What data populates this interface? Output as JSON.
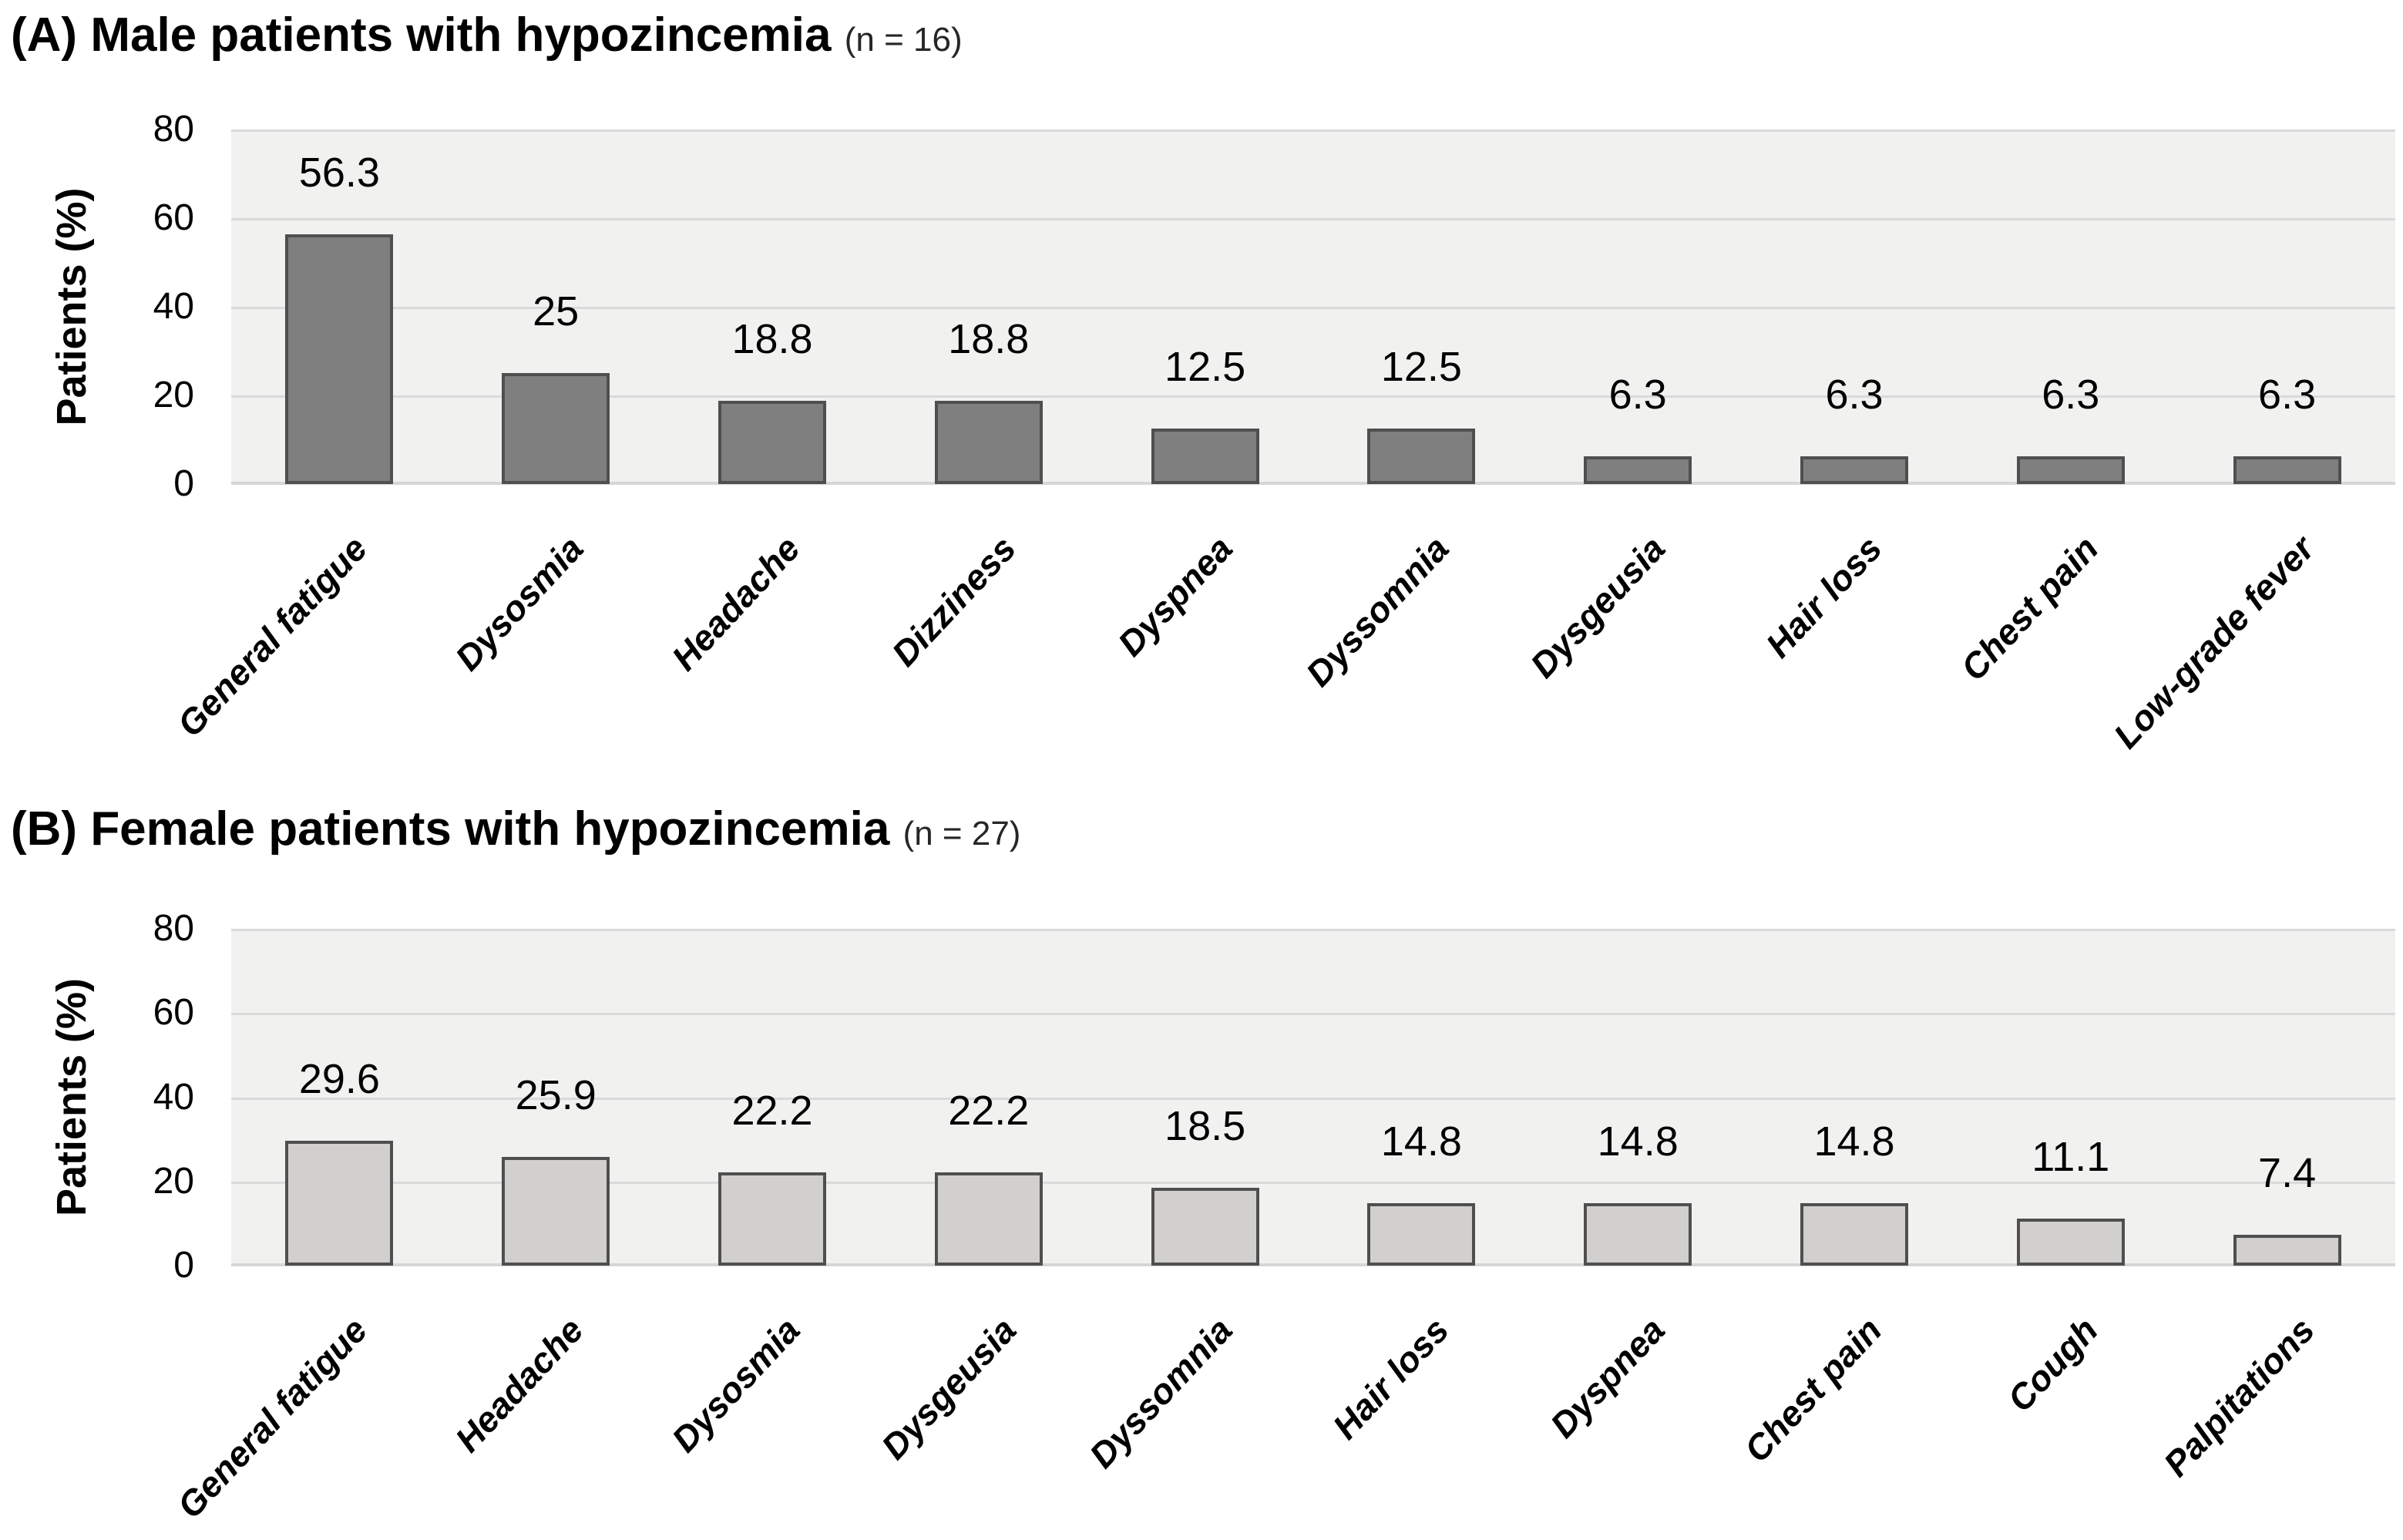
{
  "figure_background": "#ffffff",
  "chart_data": [
    {
      "type": "bar",
      "panel_letter": "(A)",
      "title": "Male patients with hypozincemia",
      "n_label": "(n = 16)",
      "ylabel": "Patients (%)",
      "ylim": [
        0,
        80
      ],
      "y_ticks": [
        80,
        60,
        40,
        20,
        0
      ],
      "grid": true,
      "legend": "none",
      "categories": [
        "General fatigue",
        "Dysosmia",
        "Headache",
        "Dizziness",
        "Dyspnea",
        "Dyssomnia",
        "Dysgeusia",
        "Hair loss",
        "Chest pain",
        "Low-grade fever"
      ],
      "values": [
        56.3,
        25,
        18.8,
        18.8,
        12.5,
        12.5,
        6.3,
        6.3,
        6.3,
        6.3
      ],
      "bar_fill": "#7f7f7f",
      "bar_border": "#4f4f4f",
      "plot_bg": "#f1f1f0",
      "gridline_color": "#dadada",
      "axisline_color": "#d6d6d5"
    },
    {
      "type": "bar",
      "panel_letter": "(B)",
      "title": "Female patients with hypozincemia",
      "n_label": "(n = 27)",
      "ylabel": "Patients (%)",
      "ylim": [
        0,
        80
      ],
      "y_ticks": [
        80,
        60,
        40,
        20,
        0
      ],
      "grid": true,
      "legend": "none",
      "categories": [
        "General fatigue",
        "Headache",
        "Dysosmia",
        "Dysgeusia",
        "Dyssomnia",
        "Hair loss",
        "Dyspnea",
        "Chest pain",
        "Cough",
        "Palpitations"
      ],
      "values": [
        29.6,
        25.9,
        22.2,
        22.2,
        18.5,
        14.8,
        14.8,
        14.8,
        11.1,
        7.4
      ],
      "bar_fill": "#d1d0ce",
      "bar_border": "#4f4f4f",
      "plot_bg": "#f1f1f0",
      "gridline_color": "#dadada",
      "axisline_color": "#d6d6d5"
    }
  ]
}
